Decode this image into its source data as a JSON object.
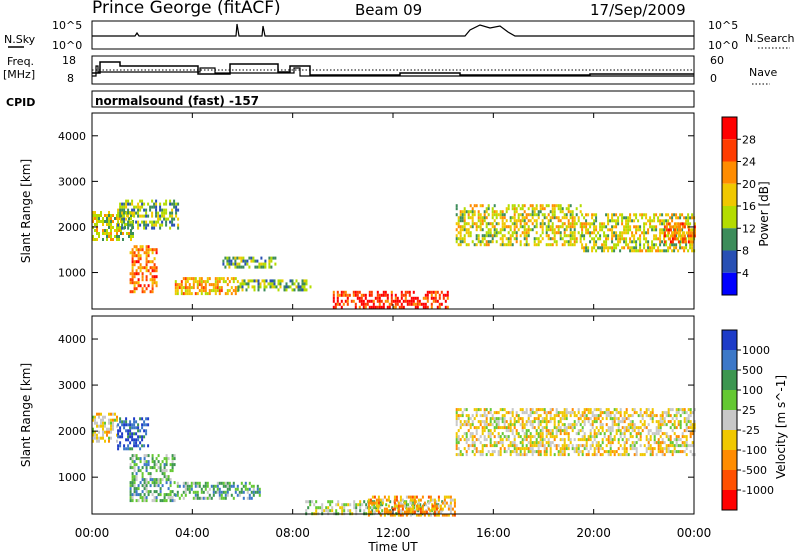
{
  "header": {
    "station": "Prince George (fitACF)",
    "beam": "Beam 09",
    "date": "17/Sep/2009"
  },
  "top_panels": {
    "nsky_label": "N.Sky",
    "nsearch_label": "N.Search",
    "log_top": "10^5",
    "log_bottom": "10^0",
    "log_top_right": "10^5",
    "log_bottom_right": "10^0",
    "freq_label_1": "Freq.",
    "freq_label_2": "[MHz]",
    "freq_ticks": [
      "18",
      "8"
    ],
    "nave_label": "Nave",
    "nave_ticks": [
      "60",
      "0"
    ],
    "cpid_label": "CPID",
    "cpid_value": "normalsound (fast) -157"
  },
  "chart_data": [
    {
      "type": "heatmap",
      "name": "power",
      "ylabel": "Slant Range [km]",
      "yticks": [
        "4000",
        "3000",
        "2000",
        "1000"
      ],
      "ylim": [
        200,
        4500
      ],
      "colorbar_label": "Power [dB]",
      "colorbar_ticks": [
        "28",
        "24",
        "20",
        "16",
        "12",
        "8",
        "4"
      ],
      "colorbar_colors": [
        "#ff0000",
        "#ff3c00",
        "#ff8c00",
        "#f0c800",
        "#b4dc00",
        "#3c8c5a",
        "#2850b4",
        "#0000ff"
      ],
      "echo_bands": [
        {
          "t0": 0.0,
          "t1": 1.6,
          "r0": 1750,
          "r1": 2350,
          "level": 4
        },
        {
          "t0": 1.5,
          "t1": 2.6,
          "r0": 600,
          "r1": 1600,
          "level": 6
        },
        {
          "t0": 1.0,
          "t1": 3.4,
          "r0": 2000,
          "r1": 2600,
          "level": 3
        },
        {
          "t0": 3.3,
          "t1": 5.8,
          "r0": 550,
          "r1": 900,
          "level": 5
        },
        {
          "t0": 5.8,
          "t1": 8.7,
          "r0": 650,
          "r1": 850,
          "level": 3
        },
        {
          "t0": 5.2,
          "t1": 7.3,
          "r0": 1150,
          "r1": 1350,
          "level": 3
        },
        {
          "t0": 9.6,
          "t1": 14.2,
          "r0": 250,
          "r1": 600,
          "level": 7
        },
        {
          "t0": 14.5,
          "t1": 19.5,
          "r0": 1600,
          "r1": 2500,
          "level": 4
        },
        {
          "t0": 19.5,
          "t1": 24.0,
          "r0": 1500,
          "r1": 2300,
          "level": 4
        },
        {
          "t0": 22.8,
          "t1": 24.0,
          "r0": 1700,
          "r1": 2100,
          "level": 6
        }
      ]
    },
    {
      "type": "heatmap",
      "name": "velocity",
      "ylabel": "Slant Range [km]",
      "yticks": [
        "4000",
        "3000",
        "2000",
        "1000"
      ],
      "ylim": [
        200,
        4500
      ],
      "colorbar_label": "Velocity [m s^-1]",
      "colorbar_ticks": [
        "1000",
        "500",
        "100",
        "25",
        "-25",
        "-100",
        "-500",
        "-1000"
      ],
      "colorbar_colors": [
        "#1e3cc8",
        "#3c78c8",
        "#3c9650",
        "#64c832",
        "#c8c8c8",
        "#f0c800",
        "#ff8c00",
        "#ff5000",
        "#ff0000"
      ],
      "echo_bands": [
        {
          "t0": 0.0,
          "t1": 1.0,
          "r0": 1800,
          "r1": 2400,
          "level": 4
        },
        {
          "t0": 1.0,
          "t1": 2.2,
          "r0": 1600,
          "r1": 2300,
          "level": 8
        },
        {
          "t0": 1.5,
          "t1": 3.3,
          "r0": 500,
          "r1": 1500,
          "level": 6
        },
        {
          "t0": 3.3,
          "t1": 6.7,
          "r0": 550,
          "r1": 900,
          "level": 6
        },
        {
          "t0": 8.5,
          "t1": 14.0,
          "r0": 200,
          "r1": 500,
          "level": 5
        },
        {
          "t0": 11.0,
          "t1": 14.5,
          "r0": 200,
          "r1": 600,
          "level": 3
        },
        {
          "t0": 14.5,
          "t1": 24.0,
          "r0": 1500,
          "r1": 2500,
          "level": 4
        }
      ],
      "xlabel": "Time UT",
      "xticks": [
        "00:00",
        "04:00",
        "08:00",
        "12:00",
        "16:00",
        "20:00",
        "00:00"
      ],
      "xlim": [
        0,
        24
      ]
    }
  ],
  "palette": {
    "power_levels": [
      "#0000ff",
      "#2850b4",
      "#3c8c5a",
      "#b4dc00",
      "#f0c800",
      "#ff8c00",
      "#ff3c00",
      "#ff0000"
    ],
    "velocity_levels": [
      "#ff0000",
      "#ff5000",
      "#ff8c00",
      "#f0c800",
      "#c8c8c8",
      "#64c832",
      "#3c9650",
      "#3c78c8",
      "#1e3cc8"
    ]
  }
}
